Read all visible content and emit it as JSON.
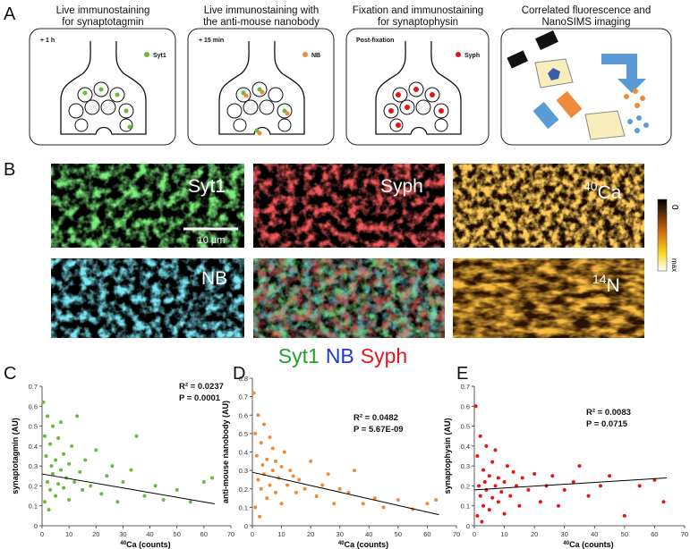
{
  "panel_labels": [
    "A",
    "B",
    "C",
    "D",
    "E"
  ],
  "panel_a": {
    "boxes": [
      {
        "title": [
          "Live immunostaining",
          "for synaptotagmin"
        ],
        "tag": "+ 1 h",
        "marker": "Syt1"
      },
      {
        "title": [
          "Live immunostaining with",
          "the anti-mouse nanobody"
        ],
        "tag": "+ 15 min",
        "marker": "NB"
      },
      {
        "title": [
          "Fixation and immunostaining",
          "for synaptophysin"
        ],
        "tag": "Post-fixation",
        "marker": "Syph"
      },
      {
        "title": [
          "Correlated fluorescence and",
          "NanoSIMS imaging"
        ]
      }
    ]
  },
  "panel_b": {
    "labels": [
      {
        "label": "Syt1"
      },
      {
        "label": "Syph"
      },
      {
        "label": "Ca",
        "label_sup": "40"
      },
      {
        "label": "NB"
      },
      {
        "label": "N",
        "label_sup": "14"
      }
    ],
    "scale_bar": "10 µm",
    "colorbar": {
      "top": "0",
      "bottom": "max"
    },
    "merge_legend": [
      {
        "text": "Syt1",
        "color": "#22a02a"
      },
      {
        "text": "NB",
        "color": "#1c38d6"
      },
      {
        "text": "Syph",
        "color": "#e81420"
      }
    ]
  },
  "chart_data": [
    {
      "type": "scatter",
      "ylabel": "synaptotagmin (AU)",
      "xlabel": "Ca (counts)",
      "xlabel_sup": "40",
      "color": "#6cb83a",
      "annotations": [
        "R² = 0.0237",
        "P = 0.0001"
      ],
      "x": [
        0.5,
        1,
        1,
        1.5,
        2,
        2,
        2.5,
        3,
        3,
        3.5,
        4,
        4,
        5,
        5,
        6,
        6,
        7,
        7,
        8,
        8,
        9,
        10,
        10,
        11,
        12,
        13,
        14,
        15,
        16,
        18,
        20,
        22,
        24,
        26,
        28,
        30,
        33,
        35,
        38,
        42,
        45,
        50,
        55,
        60,
        63
      ],
      "values": [
        0.62,
        0.45,
        0.12,
        0.35,
        0.55,
        0.22,
        0.08,
        0.41,
        0.18,
        0.3,
        0.5,
        0.26,
        0.33,
        0.15,
        0.44,
        0.21,
        0.28,
        0.52,
        0.19,
        0.36,
        0.24,
        0.31,
        0.13,
        0.4,
        0.22,
        0.55,
        0.27,
        0.18,
        0.33,
        0.2,
        0.38,
        0.16,
        0.25,
        0.3,
        0.12,
        0.22,
        0.28,
        0.45,
        0.15,
        0.2,
        0.13,
        0.18,
        0.12,
        0.22,
        0.24
      ],
      "trendline": {
        "x": [
          0,
          64
        ],
        "y": [
          0.26,
          0.11
        ]
      },
      "xlim": [
        0,
        70
      ],
      "ylim": [
        0,
        0.7
      ],
      "xticks": [
        0,
        10,
        20,
        30,
        40,
        50,
        60,
        70
      ],
      "yticks": [
        0,
        0.1,
        0.2,
        0.3,
        0.4,
        0.5,
        0.6,
        0.7
      ]
    },
    {
      "type": "scatter",
      "ylabel": "anti-mouse nanobody (AU)",
      "xlabel": "Ca (counts)",
      "xlabel_sup": "40",
      "color": "#ef8a3a",
      "annotations": [
        "R² = 0.0482",
        "P = 5.67E-09"
      ],
      "x": [
        0.5,
        1,
        1,
        1.5,
        2,
        2,
        2.5,
        3,
        3,
        3.5,
        4,
        4,
        5,
        5,
        6,
        6,
        7,
        7,
        8,
        8,
        9,
        10,
        10,
        11,
        12,
        13,
        14,
        15,
        16,
        18,
        20,
        22,
        24,
        26,
        28,
        30,
        33,
        35,
        38,
        42,
        45,
        50,
        55,
        60,
        63
      ],
      "values": [
        0.72,
        0.5,
        0.1,
        0.38,
        0.6,
        0.25,
        0.05,
        0.45,
        0.2,
        0.33,
        0.55,
        0.28,
        0.36,
        0.15,
        0.48,
        0.22,
        0.3,
        0.42,
        0.18,
        0.35,
        0.26,
        0.32,
        0.12,
        0.4,
        0.22,
        0.3,
        0.27,
        0.18,
        0.25,
        0.2,
        0.35,
        0.16,
        0.22,
        0.28,
        0.12,
        0.2,
        0.18,
        0.3,
        0.12,
        0.15,
        0.1,
        0.14,
        0.09,
        0.12,
        0.14
      ],
      "trendline": {
        "x": [
          0,
          64
        ],
        "y": [
          0.29,
          0.06
        ]
      },
      "xlim": [
        0,
        70
      ],
      "ylim": [
        0,
        0.8
      ],
      "xticks": [
        0,
        10,
        20,
        30,
        40,
        50,
        60,
        70
      ],
      "yticks": [
        0,
        0.1,
        0.2,
        0.3,
        0.4,
        0.5,
        0.6,
        0.7,
        0.8
      ]
    },
    {
      "type": "scatter",
      "ylabel": "synaptophysin (AU)",
      "xlabel": "Ca (counts)",
      "xlabel_sup": "40",
      "color": "#e81414",
      "annotations": [
        "R² = 0.0083",
        "P = 0.0715"
      ],
      "x": [
        0.5,
        1,
        1,
        1.5,
        2,
        2,
        2.5,
        3,
        3,
        3.5,
        4,
        4,
        5,
        5,
        6,
        6,
        7,
        7,
        8,
        8,
        9,
        10,
        10,
        11,
        12,
        13,
        14,
        15,
        16,
        18,
        20,
        22,
        24,
        26,
        28,
        30,
        33,
        35,
        38,
        42,
        45,
        50,
        55,
        60,
        63
      ],
      "values": [
        0.6,
        0.35,
        0.05,
        0.2,
        0.45,
        0.15,
        0.02,
        0.28,
        0.1,
        0.22,
        0.4,
        0.18,
        0.25,
        0.08,
        0.32,
        0.14,
        0.2,
        0.38,
        0.12,
        0.24,
        0.17,
        0.22,
        0.06,
        0.3,
        0.15,
        0.27,
        0.2,
        0.1,
        0.24,
        0.18,
        0.26,
        0.12,
        0.2,
        0.25,
        0.1,
        0.18,
        0.22,
        0.3,
        0.15,
        0.2,
        0.25,
        0.05,
        0.2,
        0.23,
        0.12
      ],
      "trendline": {
        "x": [
          0,
          64
        ],
        "y": [
          0.18,
          0.24
        ]
      },
      "xlim": [
        0,
        70
      ],
      "ylim": [
        0,
        0.7
      ],
      "xticks": [
        0,
        10,
        20,
        30,
        40,
        50,
        60,
        70
      ],
      "yticks": [
        0,
        0.1,
        0.2,
        0.3,
        0.4,
        0.5,
        0.6,
        0.7
      ]
    }
  ]
}
